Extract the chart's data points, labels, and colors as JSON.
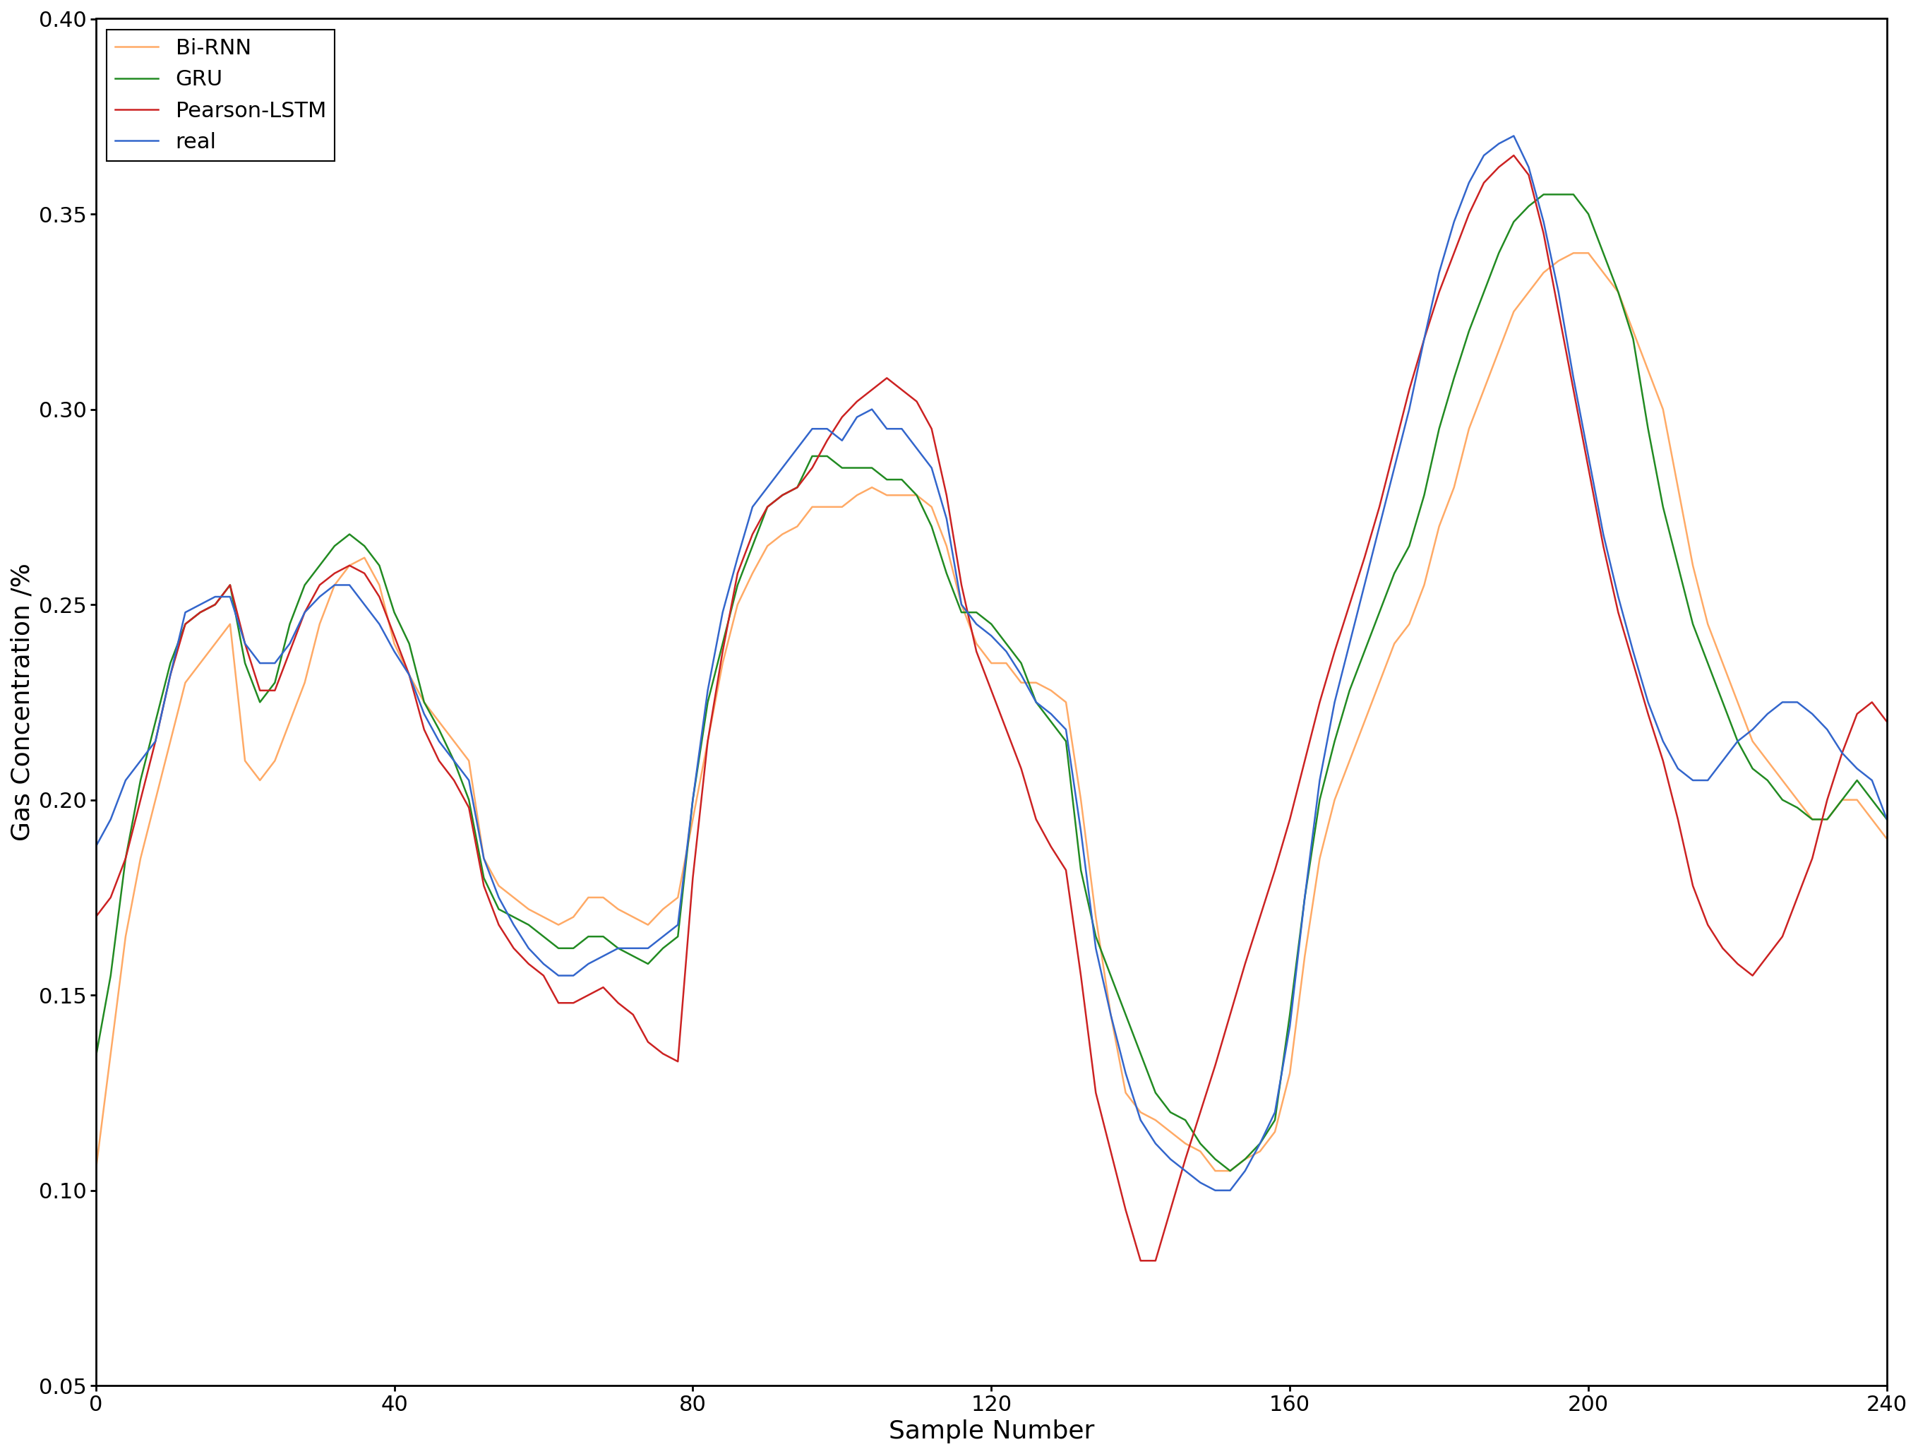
{
  "title": "",
  "xlabel": "Sample Number",
  "ylabel": "Gas Concentration /%",
  "xlim": [
    0,
    240
  ],
  "ylim": [
    0.05,
    0.4
  ],
  "yticks": [
    0.05,
    0.1,
    0.15,
    0.2,
    0.25,
    0.3,
    0.35,
    0.4
  ],
  "xticks": [
    0,
    40,
    80,
    120,
    160,
    200,
    240
  ],
  "legend": [
    "Bi-RNN",
    "GRU",
    "Pearson-LSTM",
    "real"
  ],
  "colors": {
    "bi_rnn": "#FFAA66",
    "gru": "#228B22",
    "pearson_lstm": "#CC2222",
    "real": "#3366CC"
  },
  "linewidth": 1.8,
  "legend_fontsize": 22,
  "axis_fontsize": 26,
  "tick_fontsize": 22,
  "bi_rnn_x": [
    0,
    2,
    4,
    6,
    8,
    10,
    12,
    14,
    16,
    18,
    20,
    22,
    24,
    26,
    28,
    30,
    32,
    34,
    36,
    38,
    40,
    42,
    44,
    46,
    48,
    50,
    52,
    54,
    56,
    58,
    60,
    62,
    64,
    66,
    68,
    70,
    72,
    74,
    76,
    78,
    80,
    82,
    84,
    86,
    88,
    90,
    92,
    94,
    96,
    98,
    100,
    102,
    104,
    106,
    108,
    110,
    112,
    114,
    116,
    118,
    120,
    122,
    124,
    126,
    128,
    130,
    132,
    134,
    136,
    138,
    140,
    142,
    144,
    146,
    148,
    150,
    152,
    154,
    156,
    158,
    160,
    162,
    164,
    166,
    168,
    170,
    172,
    174,
    176,
    178,
    180,
    182,
    184,
    186,
    188,
    190,
    192,
    194,
    196,
    198,
    200,
    202,
    204,
    206,
    208,
    210,
    212,
    214,
    216,
    218,
    220,
    222,
    224,
    226,
    228,
    230,
    232,
    234,
    236,
    238,
    240
  ],
  "bi_rnn_y": [
    0.105,
    0.135,
    0.165,
    0.185,
    0.2,
    0.215,
    0.23,
    0.235,
    0.24,
    0.245,
    0.21,
    0.205,
    0.21,
    0.22,
    0.23,
    0.245,
    0.255,
    0.26,
    0.262,
    0.255,
    0.24,
    0.232,
    0.225,
    0.22,
    0.215,
    0.21,
    0.185,
    0.178,
    0.175,
    0.172,
    0.17,
    0.168,
    0.17,
    0.175,
    0.175,
    0.172,
    0.17,
    0.168,
    0.172,
    0.175,
    0.195,
    0.215,
    0.235,
    0.25,
    0.258,
    0.265,
    0.268,
    0.27,
    0.275,
    0.275,
    0.275,
    0.278,
    0.28,
    0.278,
    0.278,
    0.278,
    0.275,
    0.265,
    0.25,
    0.24,
    0.235,
    0.235,
    0.23,
    0.23,
    0.228,
    0.225,
    0.2,
    0.17,
    0.145,
    0.125,
    0.12,
    0.118,
    0.115,
    0.112,
    0.11,
    0.105,
    0.105,
    0.108,
    0.11,
    0.115,
    0.13,
    0.16,
    0.185,
    0.2,
    0.21,
    0.22,
    0.23,
    0.24,
    0.245,
    0.255,
    0.27,
    0.28,
    0.295,
    0.305,
    0.315,
    0.325,
    0.33,
    0.335,
    0.338,
    0.34,
    0.34,
    0.335,
    0.33,
    0.32,
    0.31,
    0.3,
    0.28,
    0.26,
    0.245,
    0.235,
    0.225,
    0.215,
    0.21,
    0.205,
    0.2,
    0.195,
    0.195,
    0.2,
    0.2,
    0.195,
    0.19
  ],
  "gru_x": [
    0,
    2,
    4,
    6,
    8,
    10,
    12,
    14,
    16,
    18,
    20,
    22,
    24,
    26,
    28,
    30,
    32,
    34,
    36,
    38,
    40,
    42,
    44,
    46,
    48,
    50,
    52,
    54,
    56,
    58,
    60,
    62,
    64,
    66,
    68,
    70,
    72,
    74,
    76,
    78,
    80,
    82,
    84,
    86,
    88,
    90,
    92,
    94,
    96,
    98,
    100,
    102,
    104,
    106,
    108,
    110,
    112,
    114,
    116,
    118,
    120,
    122,
    124,
    126,
    128,
    130,
    132,
    134,
    136,
    138,
    140,
    142,
    144,
    146,
    148,
    150,
    152,
    154,
    156,
    158,
    160,
    162,
    164,
    166,
    168,
    170,
    172,
    174,
    176,
    178,
    180,
    182,
    184,
    186,
    188,
    190,
    192,
    194,
    196,
    198,
    200,
    202,
    204,
    206,
    208,
    210,
    212,
    214,
    216,
    218,
    220,
    222,
    224,
    226,
    228,
    230,
    232,
    234,
    236,
    238,
    240
  ],
  "gru_y": [
    0.134,
    0.155,
    0.185,
    0.205,
    0.22,
    0.235,
    0.245,
    0.248,
    0.25,
    0.255,
    0.235,
    0.225,
    0.23,
    0.245,
    0.255,
    0.26,
    0.265,
    0.268,
    0.265,
    0.26,
    0.248,
    0.24,
    0.225,
    0.218,
    0.21,
    0.2,
    0.18,
    0.172,
    0.17,
    0.168,
    0.165,
    0.162,
    0.162,
    0.165,
    0.165,
    0.162,
    0.16,
    0.158,
    0.162,
    0.165,
    0.2,
    0.225,
    0.24,
    0.255,
    0.265,
    0.275,
    0.278,
    0.28,
    0.288,
    0.288,
    0.285,
    0.285,
    0.285,
    0.282,
    0.282,
    0.278,
    0.27,
    0.258,
    0.248,
    0.248,
    0.245,
    0.24,
    0.235,
    0.225,
    0.22,
    0.215,
    0.182,
    0.165,
    0.155,
    0.145,
    0.135,
    0.125,
    0.12,
    0.118,
    0.112,
    0.108,
    0.105,
    0.108,
    0.112,
    0.118,
    0.145,
    0.175,
    0.2,
    0.215,
    0.228,
    0.238,
    0.248,
    0.258,
    0.265,
    0.278,
    0.295,
    0.308,
    0.32,
    0.33,
    0.34,
    0.348,
    0.352,
    0.355,
    0.355,
    0.355,
    0.35,
    0.34,
    0.33,
    0.318,
    0.295,
    0.275,
    0.26,
    0.245,
    0.235,
    0.225,
    0.215,
    0.208,
    0.205,
    0.2,
    0.198,
    0.195,
    0.195,
    0.2,
    0.205,
    0.2,
    0.195
  ],
  "pearson_x": [
    0,
    2,
    4,
    6,
    8,
    10,
    12,
    14,
    16,
    18,
    20,
    22,
    24,
    26,
    28,
    30,
    32,
    34,
    36,
    38,
    40,
    42,
    44,
    46,
    48,
    50,
    52,
    54,
    56,
    58,
    60,
    62,
    64,
    66,
    68,
    70,
    72,
    74,
    76,
    78,
    80,
    82,
    84,
    86,
    88,
    90,
    92,
    94,
    96,
    98,
    100,
    102,
    104,
    106,
    108,
    110,
    112,
    114,
    116,
    118,
    120,
    122,
    124,
    126,
    128,
    130,
    132,
    134,
    136,
    138,
    140,
    142,
    144,
    146,
    148,
    150,
    152,
    154,
    156,
    158,
    160,
    162,
    164,
    166,
    168,
    170,
    172,
    174,
    176,
    178,
    180,
    182,
    184,
    186,
    188,
    190,
    192,
    194,
    196,
    198,
    200,
    202,
    204,
    206,
    208,
    210,
    212,
    214,
    216,
    218,
    220,
    222,
    224,
    226,
    228,
    230,
    232,
    234,
    236,
    238,
    240
  ],
  "pearson_y": [
    0.17,
    0.175,
    0.185,
    0.2,
    0.215,
    0.232,
    0.245,
    0.248,
    0.25,
    0.255,
    0.24,
    0.228,
    0.228,
    0.238,
    0.248,
    0.255,
    0.258,
    0.26,
    0.258,
    0.252,
    0.242,
    0.232,
    0.218,
    0.21,
    0.205,
    0.198,
    0.178,
    0.168,
    0.162,
    0.158,
    0.155,
    0.148,
    0.148,
    0.15,
    0.152,
    0.148,
    0.145,
    0.138,
    0.135,
    0.133,
    0.18,
    0.215,
    0.238,
    0.258,
    0.268,
    0.275,
    0.278,
    0.28,
    0.285,
    0.292,
    0.298,
    0.302,
    0.305,
    0.308,
    0.305,
    0.302,
    0.295,
    0.278,
    0.255,
    0.238,
    0.228,
    0.218,
    0.208,
    0.195,
    0.188,
    0.182,
    0.155,
    0.125,
    0.11,
    0.095,
    0.082,
    0.082,
    0.095,
    0.108,
    0.12,
    0.132,
    0.145,
    0.158,
    0.17,
    0.182,
    0.195,
    0.21,
    0.225,
    0.238,
    0.25,
    0.262,
    0.275,
    0.29,
    0.305,
    0.318,
    0.33,
    0.34,
    0.35,
    0.358,
    0.362,
    0.365,
    0.36,
    0.345,
    0.325,
    0.305,
    0.285,
    0.265,
    0.248,
    0.235,
    0.222,
    0.21,
    0.195,
    0.178,
    0.168,
    0.162,
    0.158,
    0.155,
    0.16,
    0.165,
    0.175,
    0.185,
    0.2,
    0.212,
    0.222,
    0.225,
    0.22
  ],
  "real_x": [
    0,
    2,
    4,
    6,
    8,
    10,
    12,
    14,
    16,
    18,
    20,
    22,
    24,
    26,
    28,
    30,
    32,
    34,
    36,
    38,
    40,
    42,
    44,
    46,
    48,
    50,
    52,
    54,
    56,
    58,
    60,
    62,
    64,
    66,
    68,
    70,
    72,
    74,
    76,
    78,
    80,
    82,
    84,
    86,
    88,
    90,
    92,
    94,
    96,
    98,
    100,
    102,
    104,
    106,
    108,
    110,
    112,
    114,
    116,
    118,
    120,
    122,
    124,
    126,
    128,
    130,
    132,
    134,
    136,
    138,
    140,
    142,
    144,
    146,
    148,
    150,
    152,
    154,
    156,
    158,
    160,
    162,
    164,
    166,
    168,
    170,
    172,
    174,
    176,
    178,
    180,
    182,
    184,
    186,
    188,
    190,
    192,
    194,
    196,
    198,
    200,
    202,
    204,
    206,
    208,
    210,
    212,
    214,
    216,
    218,
    220,
    222,
    224,
    226,
    228,
    230,
    232,
    234,
    236,
    238,
    240
  ],
  "real_y": [
    0.188,
    0.195,
    0.205,
    0.21,
    0.215,
    0.232,
    0.248,
    0.25,
    0.252,
    0.252,
    0.24,
    0.235,
    0.235,
    0.24,
    0.248,
    0.252,
    0.255,
    0.255,
    0.25,
    0.245,
    0.238,
    0.232,
    0.222,
    0.215,
    0.21,
    0.205,
    0.185,
    0.175,
    0.168,
    0.162,
    0.158,
    0.155,
    0.155,
    0.158,
    0.16,
    0.162,
    0.162,
    0.162,
    0.165,
    0.168,
    0.2,
    0.228,
    0.248,
    0.262,
    0.275,
    0.28,
    0.285,
    0.29,
    0.295,
    0.295,
    0.292,
    0.298,
    0.3,
    0.295,
    0.295,
    0.29,
    0.285,
    0.272,
    0.25,
    0.245,
    0.242,
    0.238,
    0.232,
    0.225,
    0.222,
    0.218,
    0.192,
    0.162,
    0.145,
    0.13,
    0.118,
    0.112,
    0.108,
    0.105,
    0.102,
    0.1,
    0.1,
    0.105,
    0.112,
    0.12,
    0.142,
    0.175,
    0.205,
    0.225,
    0.24,
    0.255,
    0.27,
    0.285,
    0.3,
    0.318,
    0.335,
    0.348,
    0.358,
    0.365,
    0.368,
    0.37,
    0.362,
    0.348,
    0.33,
    0.308,
    0.288,
    0.268,
    0.252,
    0.238,
    0.225,
    0.215,
    0.208,
    0.205,
    0.205,
    0.21,
    0.215,
    0.218,
    0.222,
    0.225,
    0.225,
    0.222,
    0.218,
    0.212,
    0.208,
    0.205,
    0.195
  ]
}
